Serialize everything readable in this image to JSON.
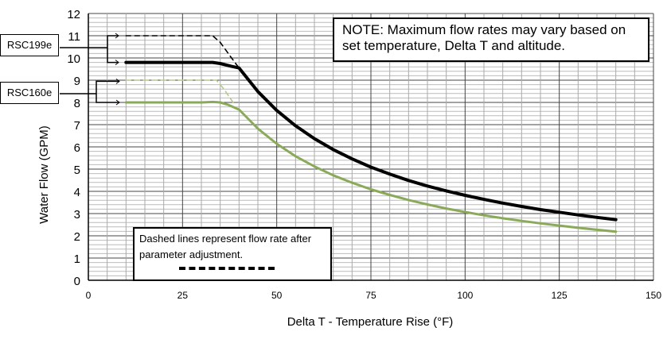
{
  "chart_data": {
    "type": "line",
    "title": "",
    "xlabel": "Delta T - Temperature Rise (°F)",
    "ylabel": "Water Flow (GPM)",
    "xlim": [
      0,
      150
    ],
    "ylim": [
      0,
      12
    ],
    "xticks": [
      "0",
      "25",
      "50",
      "75",
      "100",
      "125",
      "150"
    ],
    "yticks": [
      "0",
      "1",
      "2",
      "3",
      "4",
      "5",
      "6",
      "7",
      "8",
      "9",
      "10",
      "11",
      "12"
    ],
    "grid": true,
    "series": [
      {
        "name": "RSC199e",
        "style": "solid",
        "color": "#000000",
        "x": [
          10,
          15,
          20,
          25,
          30,
          33,
          35,
          38,
          40,
          45,
          50,
          55,
          60,
          65,
          70,
          75,
          80,
          85,
          90,
          95,
          100,
          105,
          110,
          115,
          120,
          125,
          130,
          135,
          140
        ],
        "y": [
          9.8,
          9.8,
          9.8,
          9.8,
          9.8,
          9.8,
          9.75,
          9.62,
          9.55,
          8.49,
          7.64,
          6.95,
          6.37,
          5.88,
          5.46,
          5.09,
          4.78,
          4.49,
          4.24,
          4.02,
          3.82,
          3.64,
          3.47,
          3.32,
          3.18,
          3.06,
          2.94,
          2.83,
          2.73
        ]
      },
      {
        "name": "RSC199e (adjusted)",
        "style": "dashed",
        "color": "#000000",
        "x": [
          10,
          20,
          30,
          33,
          35,
          38,
          40
        ],
        "y": [
          11,
          11,
          11,
          11,
          10.7,
          10.0,
          9.55
        ]
      },
      {
        "name": "RSC160e",
        "style": "solid",
        "color": "#8aaa5a",
        "x": [
          10,
          15,
          20,
          25,
          30,
          33,
          35,
          37,
          40,
          45,
          50,
          55,
          60,
          65,
          70,
          75,
          80,
          85,
          90,
          95,
          100,
          105,
          110,
          115,
          120,
          125,
          130,
          135,
          140
        ],
        "y": [
          8.0,
          8.0,
          8.0,
          8.0,
          8.0,
          8.02,
          8.0,
          7.9,
          7.68,
          6.82,
          6.14,
          5.58,
          5.12,
          4.72,
          4.39,
          4.09,
          3.84,
          3.61,
          3.41,
          3.23,
          3.07,
          2.92,
          2.79,
          2.67,
          2.56,
          2.46,
          2.36,
          2.27,
          2.19
        ]
      },
      {
        "name": "RSC160e (adjusted)",
        "style": "dashed",
        "color": "#b4c98a",
        "x": [
          10,
          20,
          30,
          34,
          36,
          38,
          39
        ],
        "y": [
          9,
          9,
          9,
          9,
          8.6,
          8.1,
          7.85
        ]
      }
    ],
    "annotations": {
      "note": "NOTE: Maximum flow rates may vary based on set temperature, Delta T and altitude.",
      "dashed_legend": "Dashed lines represent flow rate after parameter adjustment.",
      "label_199": "RSC199e",
      "label_160": "RSC160e"
    }
  }
}
